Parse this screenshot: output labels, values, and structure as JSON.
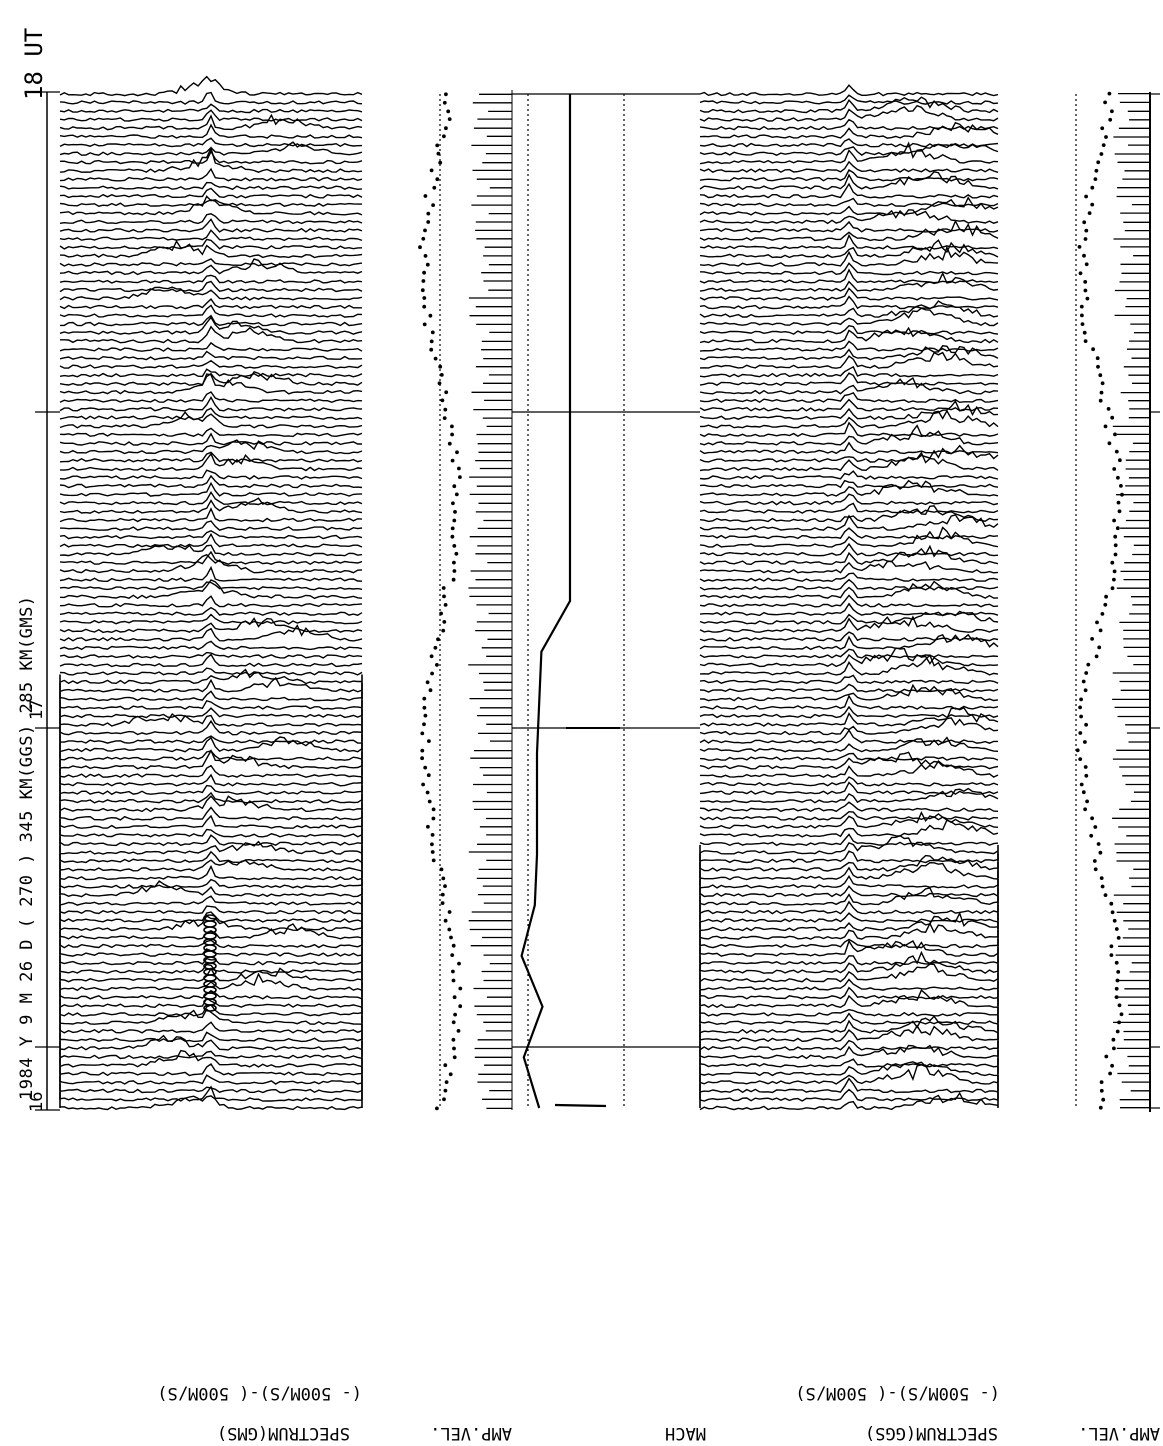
{
  "header": {
    "run_label": "1984 Y 9 M 26 D  ( 270 ) 345 KM(GGS) 285 KM(GMS)"
  },
  "axis": {
    "time_ticks": [
      {
        "value": "18 UT",
        "hour": 18
      },
      {
        "value": "17",
        "hour": 17
      },
      {
        "value": "16",
        "hour": 16
      }
    ]
  },
  "panels": {
    "spectrum_gms": {
      "title": "SPECTRUM(GMS)",
      "range": "(- 500M/S)-( 500M/S)"
    },
    "ampvel_gms": {
      "title": "AMP.VEL."
    },
    "mach": {
      "title": "MACH"
    },
    "spectrum_ggs": {
      "title": "SPECTRUM(GGS)",
      "range": "(- 500M/S)-( 500M/S)"
    },
    "ampvel_ggs": {
      "title": "AMP.VEL."
    }
  },
  "chart_data": {
    "type": "line",
    "title": "1984 Y 9 M 26 D ( 270 ) 345 KM(GGS) 285 KM(GMS)",
    "time_axis": {
      "label": "UT",
      "range_hours": [
        16,
        18
      ],
      "direction": "bottom-to-top"
    },
    "spectrum_velocity_range_m_per_s": [
      -500,
      500
    ],
    "series": [
      {
        "name": "SPECTRUM(GMS)",
        "description_kind": "stacked Doppler spectra",
        "profile_count": 120
      },
      {
        "name": "AMP.VEL.",
        "description_kind": "amplitude velocity dots and bars"
      },
      {
        "name": "MACH",
        "time_hours": [
          16.0,
          16.1,
          16.2,
          16.3,
          16.4,
          16.5,
          16.6,
          16.7,
          16.8,
          16.9,
          17.0,
          17.2,
          17.4,
          17.6,
          17.8,
          18.0
        ],
        "values": [
          0.22,
          0.08,
          0.25,
          0.06,
          0.18,
          0.2,
          0.2,
          0.2,
          0.22,
          0.24,
          0.5,
          0.5,
          0.5,
          0.5,
          0.5,
          0.5
        ]
      },
      {
        "name": "SPECTRUM(GGS)",
        "description_kind": "stacked Doppler spectra",
        "profile_count": 120
      },
      {
        "name": "AMP.VEL.",
        "description_kind": "amplitude velocity dots and bars"
      }
    ],
    "grid": false
  }
}
